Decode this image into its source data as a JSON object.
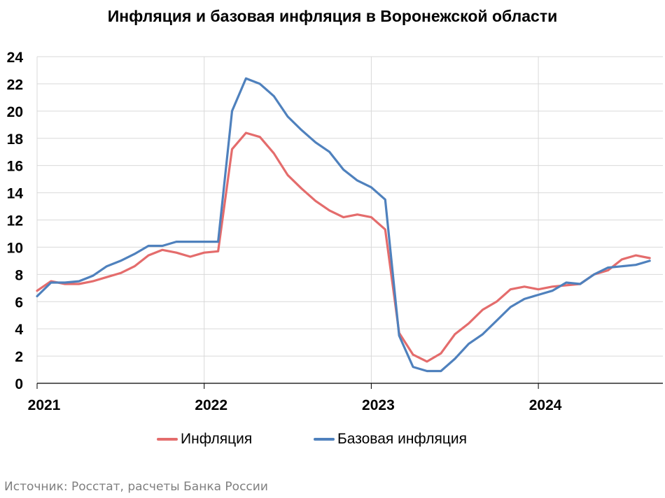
{
  "chart_data": {
    "type": "line",
    "title": "Инфляция и базовая инфляция в Воронежской области",
    "xlabel": "",
    "ylabel": "",
    "ylim": [
      0,
      24
    ],
    "yticks": [
      "0",
      "2",
      "4",
      "6",
      "8",
      "10",
      "12",
      "14",
      "16",
      "18",
      "20",
      "22",
      "24"
    ],
    "xticks": [
      "2021",
      "2022",
      "2023",
      "2024"
    ],
    "grid": true,
    "legend_position": "bottom",
    "x": [
      "2021-01",
      "2021-02",
      "2021-03",
      "2021-04",
      "2021-05",
      "2021-06",
      "2021-07",
      "2021-08",
      "2021-09",
      "2021-10",
      "2021-11",
      "2021-12",
      "2022-01",
      "2022-02",
      "2022-03",
      "2022-04",
      "2022-05",
      "2022-06",
      "2022-07",
      "2022-08",
      "2022-09",
      "2022-10",
      "2022-11",
      "2022-12",
      "2023-01",
      "2023-02",
      "2023-03",
      "2023-04",
      "2023-05",
      "2023-06",
      "2023-07",
      "2023-08",
      "2023-09",
      "2023-10",
      "2023-11",
      "2023-12",
      "2024-01",
      "2024-02",
      "2024-03",
      "2024-04",
      "2024-05",
      "2024-06",
      "2024-07",
      "2024-08",
      "2024-09"
    ],
    "series": [
      {
        "name": "Инфляция",
        "color": "#e46c6c",
        "values": [
          6.8,
          7.5,
          7.3,
          7.3,
          7.5,
          7.8,
          8.1,
          8.6,
          9.4,
          9.8,
          9.6,
          9.3,
          9.6,
          9.7,
          17.2,
          18.4,
          18.1,
          16.9,
          15.3,
          14.3,
          13.4,
          12.7,
          12.2,
          12.4,
          12.2,
          11.3,
          3.7,
          2.1,
          1.6,
          2.2,
          3.6,
          4.4,
          5.4,
          6.0,
          6.9,
          7.1,
          6.9,
          7.1,
          7.2,
          7.3,
          8.0,
          8.3,
          9.1,
          9.4,
          9.2
        ]
      },
      {
        "name": "Базовая инфляция",
        "color": "#4f81bd",
        "values": [
          6.4,
          7.4,
          7.4,
          7.5,
          7.9,
          8.6,
          9.0,
          9.5,
          10.1,
          10.1,
          10.4,
          10.4,
          10.4,
          10.4,
          20.0,
          22.4,
          22.0,
          21.1,
          19.6,
          18.6,
          17.7,
          17.0,
          15.7,
          14.9,
          14.4,
          13.5,
          3.5,
          1.2,
          0.9,
          0.9,
          1.8,
          2.9,
          3.6,
          4.6,
          5.6,
          6.2,
          6.5,
          6.8,
          7.4,
          7.3,
          8.0,
          8.5,
          8.6,
          8.7,
          9.0
        ]
      }
    ]
  },
  "source_text": "Источник: Росстат, расчеты Банка России"
}
